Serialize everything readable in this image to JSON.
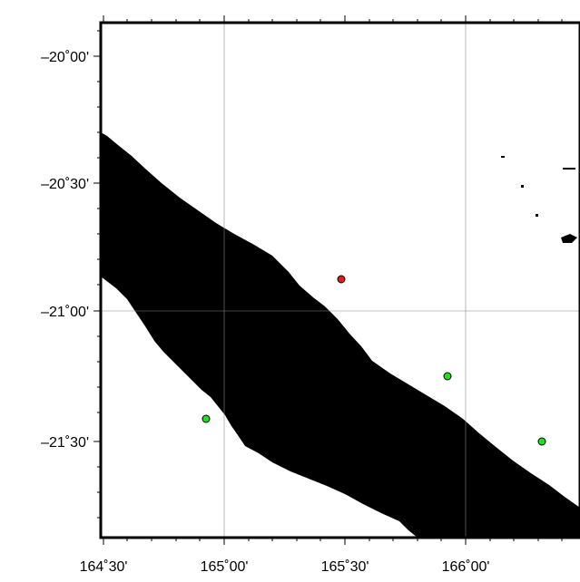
{
  "map": {
    "lat_labels": [
      "–20˚00'",
      "–20˚30'",
      "–21˚00'",
      "–21˚30'"
    ],
    "lon_labels": [
      "164˚30'",
      "165˚00'",
      "165˚30'",
      "166˚00'"
    ],
    "land_color": "#000000",
    "sea_color": "#ffffff",
    "gridline_color": "#888888",
    "markers": [
      {
        "label": "red-marker",
        "color": "#e11b1b",
        "lon": 165.49,
        "lat": -20.82
      },
      {
        "label": "green-marker-1",
        "color": "#22e01f",
        "lon": 165.93,
        "lat": -21.25
      },
      {
        "label": "green-marker-2",
        "color": "#22e01f",
        "lon": 164.91,
        "lat": -21.42
      },
      {
        "label": "green-marker-3",
        "color": "#22e01f",
        "lon": 166.31,
        "lat": -21.5
      }
    ]
  }
}
